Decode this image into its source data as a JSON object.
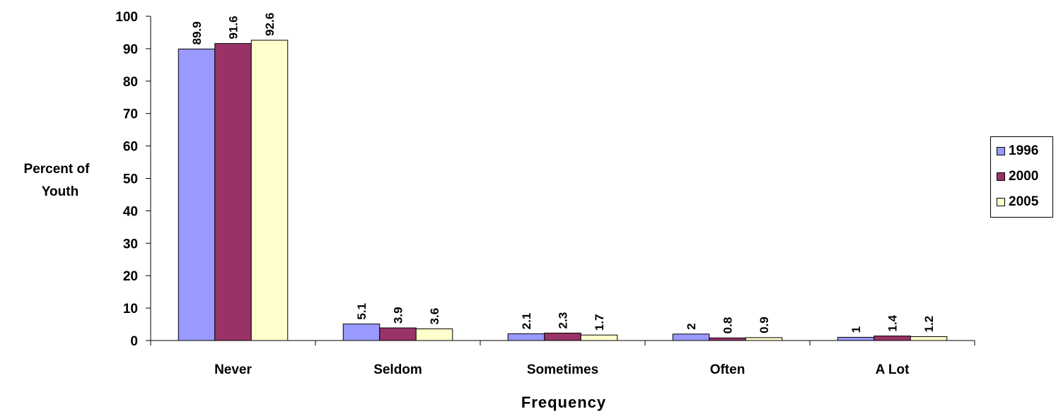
{
  "chart_data": {
    "type": "bar",
    "categories": [
      "Never",
      "Seldom",
      "Sometimes",
      "Often",
      "A Lot"
    ],
    "series": [
      {
        "name": "1996",
        "values": [
          89.9,
          5.1,
          2.1,
          2,
          1
        ],
        "color": "#9999ff"
      },
      {
        "name": "2000",
        "values": [
          91.6,
          3.9,
          2.3,
          0.8,
          1.4
        ],
        "color": "#993366"
      },
      {
        "name": "2005",
        "values": [
          92.6,
          3.6,
          1.7,
          0.9,
          1.2
        ],
        "color": "#ffffcc"
      }
    ],
    "value_labels": [
      [
        "89.9",
        "5.1",
        "2.1",
        "2",
        "1"
      ],
      [
        "91.6",
        "3.9",
        "2.3",
        "0.8",
        "1.4"
      ],
      [
        "92.6",
        "3.6",
        "1.7",
        "0.9",
        "1.2"
      ]
    ],
    "title": "",
    "xlabel": "Frequency",
    "ylabel_lines": [
      "Percent of",
      "Youth"
    ],
    "ylim": [
      0,
      100
    ],
    "yticks": [
      0,
      10,
      20,
      30,
      40,
      50,
      60,
      70,
      80,
      90,
      100
    ],
    "ytick_labels": [
      "0",
      "10",
      "20",
      "30",
      "40",
      "50",
      "60",
      "70",
      "80",
      "90",
      "100"
    ],
    "grid": false,
    "legend_position": "right"
  }
}
